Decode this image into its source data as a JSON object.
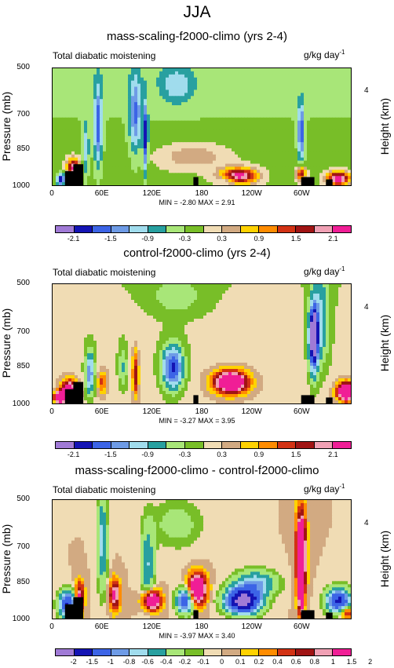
{
  "title": "JJA",
  "colors": {
    "c11": [
      "#a07ad6",
      "#1414b4",
      "#3c64e6",
      "#6e9be6",
      "#a0dced",
      "#28a0a0",
      "#a8e678",
      "#78be28",
      "#f0dcb4",
      "#d2aa82",
      "#ffd200",
      "#ff8c00",
      "#d23214",
      "#a01414",
      "#f0a0b4",
      "#f01e96"
    ],
    "c15": [
      "#a07ad6",
      "#1414b4",
      "#3c64e6",
      "#6e9be6",
      "#a0dced",
      "#28a0a0",
      "#a8e678",
      "#78be28",
      "#f0dcb4",
      "#d2aa82",
      "#ffd200",
      "#ff8c00",
      "#d23214",
      "#a01414",
      "#f0a0b4",
      "#f01e96"
    ]
  },
  "chart_data": [
    {
      "type": "heatmap",
      "title": "mass-scaling-f2000-climo (yrs 2-4)",
      "variable": "Total diabatic moistening",
      "units_main": "g/kg day",
      "units_exp": "-1",
      "ylabel": "Pressure (mb)",
      "right_label": "Height (km)",
      "right_ticks": [
        "4"
      ],
      "y_ticks": [
        "500",
        "700",
        "850",
        "1000"
      ],
      "x_ticks": [
        "0",
        "60E",
        "120E",
        "180",
        "120W",
        "60W"
      ],
      "x_range": [
        0,
        360
      ],
      "y_range": [
        1000,
        500
      ],
      "min_label": "MIN = -2.80",
      "max_label": "MAX =  2.91",
      "min": -2.8,
      "max": 2.91,
      "colorbar_labels": [
        "-2.1",
        "-1.5",
        "-0.9",
        "-0.3",
        "0.3",
        "0.9",
        "1.5",
        "2.1"
      ],
      "levels": [
        -2.1,
        -1.8,
        -1.5,
        -1.2,
        -0.9,
        -0.6,
        -0.3,
        0,
        0.3,
        0.6,
        0.9,
        1.2,
        1.5,
        1.8,
        2.1
      ]
    },
    {
      "type": "heatmap",
      "title": "control-f2000-climo (yrs 2-4)",
      "variable": "Total diabatic moistening",
      "units_main": "g/kg day",
      "units_exp": "-1",
      "ylabel": "Pressure (mb)",
      "right_label": "Height (km)",
      "right_ticks": [
        "4"
      ],
      "y_ticks": [
        "500",
        "700",
        "850",
        "1000"
      ],
      "x_ticks": [
        "0",
        "60E",
        "120E",
        "180",
        "120W",
        "60W"
      ],
      "x_range": [
        0,
        360
      ],
      "y_range": [
        1000,
        500
      ],
      "min_label": "MIN = -3.27",
      "max_label": "MAX =  3.95",
      "min": -3.27,
      "max": 3.95,
      "colorbar_labels": [
        "-2.1",
        "-1.5",
        "-0.9",
        "-0.3",
        "0.3",
        "0.9",
        "1.5",
        "2.1"
      ],
      "levels": [
        -2.1,
        -1.8,
        -1.5,
        -1.2,
        -0.9,
        -0.6,
        -0.3,
        0,
        0.3,
        0.6,
        0.9,
        1.2,
        1.5,
        1.8,
        2.1
      ]
    },
    {
      "type": "heatmap",
      "title": "mass-scaling-f2000-climo - control-f2000-climo",
      "variable": "Total diabatic moistening",
      "units_main": "g/kg day",
      "units_exp": "-1",
      "ylabel": "Pressure (mb)",
      "right_label": "Height (km)",
      "right_ticks": [
        "4"
      ],
      "y_ticks": [
        "500",
        "700",
        "850",
        "1000"
      ],
      "x_ticks": [
        "0",
        "60E",
        "120E",
        "180",
        "120W",
        "60W"
      ],
      "x_range": [
        0,
        360
      ],
      "y_range": [
        1000,
        500
      ],
      "min_label": "MIN = -3.97",
      "max_label": "MAX =  3.40",
      "min": -3.97,
      "max": 3.4,
      "colorbar_labels": [
        "-2",
        "-1.5",
        "-1",
        "-0.8",
        "-0.6",
        "-0.4",
        "-0.2",
        "-0.1",
        "0",
        "0.1",
        "0.2",
        "0.4",
        "0.6",
        "0.8",
        "1",
        "1.5",
        "2"
      ],
      "levels": [
        -2,
        -1.5,
        -1,
        -0.8,
        -0.6,
        -0.4,
        -0.2,
        -0.1,
        0,
        0.1,
        0.2,
        0.4,
        0.6,
        0.8,
        1,
        1.5,
        2
      ]
    }
  ]
}
